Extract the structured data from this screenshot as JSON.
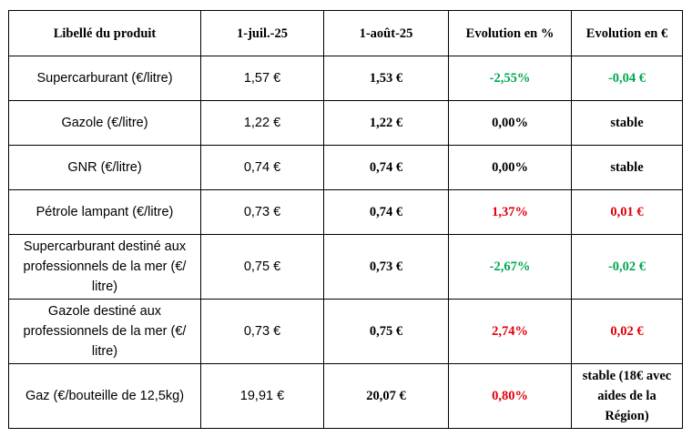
{
  "headers": [
    "Libellé du produit",
    "1-juil.-25",
    "1-août-25",
    "Evolution en %",
    "Evolution en €"
  ],
  "rows": [
    {
      "label": "Supercarburant  (€/litre)",
      "v1": "1,57 €",
      "v2": "1,53 €",
      "pct": "-2,55%",
      "eur": "-0,04 €",
      "trend": "neg"
    },
    {
      "label": "Gazole  (€/litre)",
      "v1": "1,22 €",
      "v2": "1,22 €",
      "pct": "0,00%",
      "eur": "stable",
      "trend": "neu"
    },
    {
      "label": "GNR (€/litre)",
      "v1": "0,74 €",
      "v2": "0,74 €",
      "pct": "0,00%",
      "eur": "stable",
      "trend": "neu"
    },
    {
      "label": "Pétrole lampant (€/litre)",
      "v1": "0,73 €",
      "v2": "0,74 €",
      "pct": "1,37%",
      "eur": "0,01 €",
      "trend": "pos"
    },
    {
      "label": "Supercarburant destiné aux professionnels de la mer   (€/ litre)",
      "v1": "0,75 €",
      "v2": "0,73 €",
      "pct": "-2,67%",
      "eur": "-0,02 €",
      "trend": "neg"
    },
    {
      "label": "Gazole destiné aux professionnels de la mer   (€/ litre)",
      "v1": "0,73 €",
      "v2": "0,75 €",
      "pct": "2,74%",
      "eur": "0,02 €",
      "trend": "pos"
    },
    {
      "label": "Gaz (€/bouteille de 12,5kg)",
      "v1": "19,91 €",
      "v2": "20,07 €",
      "pct": "0,80%",
      "eur": "stable (18€ avec aides de la Région)",
      "trend": "pos",
      "eur_trend": "neu"
    }
  ],
  "colors": {
    "negative": "#00a651",
    "positive": "#e0000a",
    "neutral": "#000000"
  }
}
